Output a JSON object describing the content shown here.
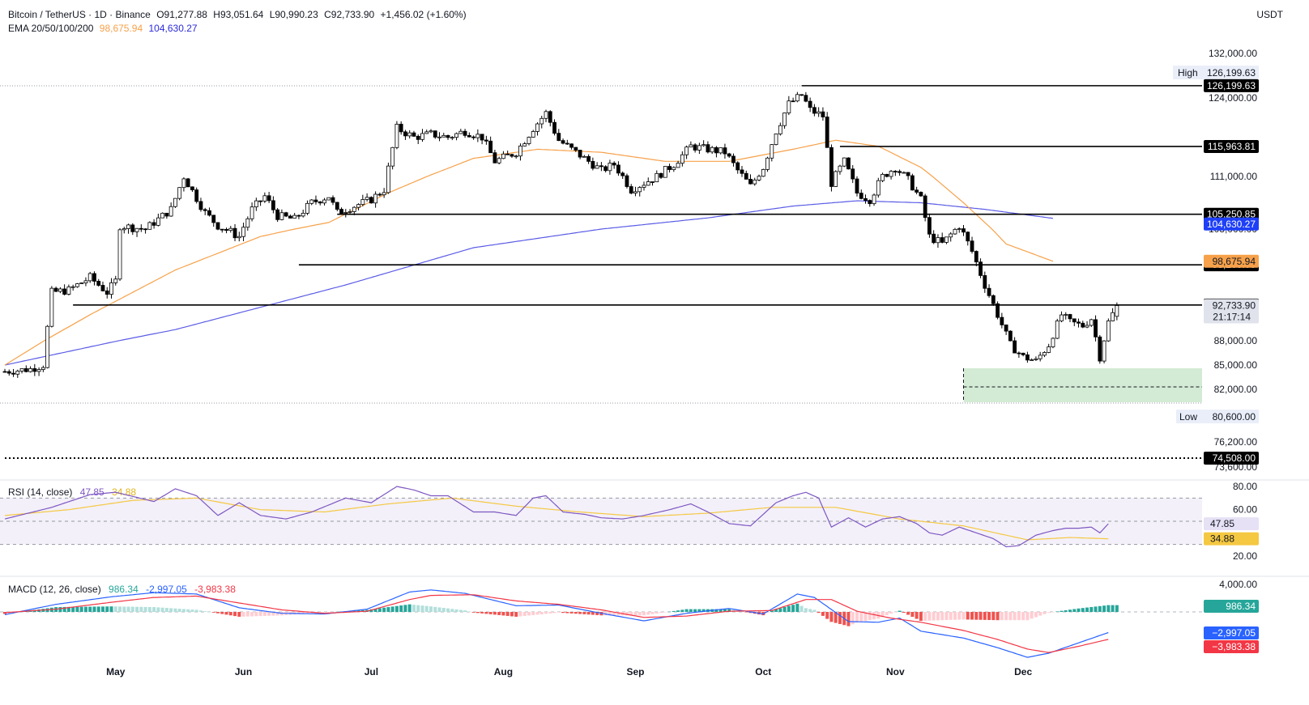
{
  "header": {
    "symbol": "Bitcoin / TetherUS · 1D · Binance",
    "open_label": "O",
    "open": "91,277.88",
    "high_label": "H",
    "high": "93,051.64",
    "low_label": "L",
    "low": "90,990.23",
    "close_label": "C",
    "close": "92,733.90",
    "change": "+1,456.02 (+1.60%)",
    "ema_label": "EMA 20/50/100/200",
    "ema50_value": "98,675.94",
    "ema200_value": "104,630.27"
  },
  "currency": "USDT",
  "colors": {
    "up": "#ffffff",
    "down": "#000000",
    "ema50": "#f7a14a",
    "ema200": "#5b5ce6",
    "rsi": "#7e57c2",
    "rsi_ma": "#f5c842",
    "macd": "#2962ff",
    "signal": "#f23645",
    "hist_pos": "#26a69a",
    "hist_neg": "#ef5350"
  },
  "chart_data": [
    {
      "type": "candlestick",
      "title": "Bitcoin / TetherUS · 1D · Binance",
      "y_axis": {
        "min": 73000,
        "max": 134000,
        "ticks": [
          "132,000.00",
          "124,000.00",
          "111,000.00",
          "103,000.00",
          "88,000.00",
          "85,000.00",
          "82,000.00",
          "76,200.00",
          "73,600.00"
        ],
        "tick_values": [
          132000,
          124000,
          111000,
          103000,
          88000,
          85000,
          82000,
          76200,
          73600
        ]
      },
      "x_axis": {
        "ticks": [
          "May",
          "Jun",
          "Jul",
          "Aug",
          "Sep",
          "Oct",
          "Nov",
          "Dec"
        ],
        "tick_days": [
          26,
          56,
          86,
          117,
          148,
          178,
          209,
          239
        ]
      },
      "x_start": "2025-04-01",
      "x_end": "2025-12-04",
      "markers": {
        "high_label": "High",
        "high": "126,199.63",
        "low_label": "Low",
        "low": "80,600.00"
      },
      "levels": [
        {
          "value": 126199.63,
          "label": "126,199.63",
          "from_day": 187
        },
        {
          "value": 115963.81,
          "label": "115,963.81",
          "from_day": 196
        },
        {
          "value": 105250.85,
          "label": "105,250.85",
          "from_day": 78
        },
        {
          "value": 98200.0,
          "label": "98,200.00",
          "from_day": 69
        },
        {
          "value": 92800.01,
          "label": "92,800.01",
          "from_day": 16
        },
        {
          "value": 74508.0,
          "label": "74,508.00",
          "from_day": 0,
          "dotted": true
        }
      ],
      "last_price": {
        "value": 92733.9,
        "label": "92,733.90",
        "countdown": "21:17:14"
      },
      "ema_labels": {
        "ema200": "104,630.27",
        "ema50": "98,675.94"
      },
      "zone": {
        "from_day": 225,
        "low": 80600,
        "high": 84600,
        "mid": 82300
      },
      "anchor_points": [
        [
          0,
          84200
        ],
        [
          6,
          84500
        ],
        [
          9,
          85000
        ],
        [
          11,
          94500
        ],
        [
          15,
          94800
        ],
        [
          20,
          96500
        ],
        [
          24,
          94500
        ],
        [
          26,
          96000
        ],
        [
          27,
          103500
        ],
        [
          33,
          103000
        ],
        [
          39,
          106000
        ],
        [
          42,
          111000
        ],
        [
          47,
          105500
        ],
        [
          50,
          103500
        ],
        [
          55,
          102000
        ],
        [
          58,
          106000
        ],
        [
          61,
          108000
        ],
        [
          64,
          105000
        ],
        [
          68,
          104500
        ],
        [
          72,
          107000
        ],
        [
          76,
          108000
        ],
        [
          78,
          105500
        ],
        [
          82,
          106500
        ],
        [
          86,
          107500
        ],
        [
          89,
          109000
        ],
        [
          92,
          119000
        ],
        [
          96,
          117500
        ],
        [
          100,
          118000
        ],
        [
          104,
          117500
        ],
        [
          108,
          118500
        ],
        [
          112,
          117500
        ],
        [
          115,
          113500
        ],
        [
          120,
          115000
        ],
        [
          124,
          119000
        ],
        [
          127,
          121500
        ],
        [
          130,
          117000
        ],
        [
          133,
          115500
        ],
        [
          136,
          114000
        ],
        [
          140,
          112000
        ],
        [
          143,
          113000
        ],
        [
          147,
          109000
        ],
        [
          150,
          110000
        ],
        [
          153,
          111000
        ],
        [
          157,
          113000
        ],
        [
          161,
          116000
        ],
        [
          165,
          115500
        ],
        [
          169,
          115000
        ],
        [
          172,
          112000
        ],
        [
          175,
          109500
        ],
        [
          178,
          112500
        ],
        [
          181,
          118500
        ],
        [
          184,
          123000
        ],
        [
          187,
          124500
        ],
        [
          189,
          122000
        ],
        [
          192,
          121000
        ],
        [
          194,
          110000
        ],
        [
          197,
          113500
        ],
        [
          200,
          108500
        ],
        [
          203,
          107500
        ],
        [
          206,
          111000
        ],
        [
          209,
          112500
        ],
        [
          212,
          110500
        ],
        [
          215,
          107500
        ],
        [
          217,
          102000
        ],
        [
          220,
          101000
        ],
        [
          224,
          103500
        ],
        [
          227,
          100000
        ],
        [
          230,
          95500
        ],
        [
          233,
          91500
        ],
        [
          236,
          87500
        ],
        [
          239,
          86000
        ],
        [
          242,
          85500
        ],
        [
          245,
          87500
        ],
        [
          248,
          91500
        ],
        [
          250,
          90500
        ],
        [
          253,
          90000
        ],
        [
          255,
          91000
        ],
        [
          257,
          86000
        ],
        [
          259,
          90500
        ],
        [
          261,
          92733.9
        ]
      ],
      "ema50": [
        [
          0,
          85000
        ],
        [
          20,
          91500
        ],
        [
          40,
          97500
        ],
        [
          60,
          102000
        ],
        [
          76,
          104000
        ],
        [
          90,
          108500
        ],
        [
          110,
          114000
        ],
        [
          125,
          115500
        ],
        [
          140,
          115000
        ],
        [
          155,
          113500
        ],
        [
          170,
          113500
        ],
        [
          185,
          115500
        ],
        [
          195,
          117000
        ],
        [
          205,
          116000
        ],
        [
          215,
          112500
        ],
        [
          225,
          107000
        ],
        [
          235,
          101000
        ],
        [
          246,
          98675.94
        ]
      ],
      "ema200": [
        [
          0,
          85000
        ],
        [
          40,
          89500
        ],
        [
          80,
          95500
        ],
        [
          110,
          100500
        ],
        [
          140,
          103000
        ],
        [
          165,
          104700
        ],
        [
          185,
          106500
        ],
        [
          200,
          107300
        ],
        [
          215,
          107000
        ],
        [
          230,
          106000
        ],
        [
          246,
          104630.27
        ]
      ]
    },
    {
      "type": "line",
      "title": "RSI (14, close)",
      "values_label": {
        "rsi": "47.85",
        "rsi_ma": "34.88"
      },
      "y_axis": {
        "ticks": [
          "80.00",
          "60.00",
          "20.00"
        ],
        "tick_values": [
          80,
          60,
          20
        ],
        "bands": [
          70,
          50,
          30
        ]
      },
      "anchor_points": [
        [
          0,
          52
        ],
        [
          11,
          62
        ],
        [
          20,
          73
        ],
        [
          26,
          75
        ],
        [
          35,
          67
        ],
        [
          40,
          78
        ],
        [
          45,
          72
        ],
        [
          50,
          55
        ],
        [
          55,
          66
        ],
        [
          60,
          55
        ],
        [
          66,
          52
        ],
        [
          72,
          58
        ],
        [
          80,
          70
        ],
        [
          86,
          66
        ],
        [
          92,
          80
        ],
        [
          96,
          77
        ],
        [
          100,
          72
        ],
        [
          104,
          72
        ],
        [
          110,
          58
        ],
        [
          115,
          58
        ],
        [
          120,
          55
        ],
        [
          124,
          70
        ],
        [
          127,
          72
        ],
        [
          131,
          58
        ],
        [
          136,
          56
        ],
        [
          140,
          53
        ],
        [
          145,
          52
        ],
        [
          150,
          55
        ],
        [
          156,
          60
        ],
        [
          161,
          65
        ],
        [
          165,
          58
        ],
        [
          170,
          48
        ],
        [
          175,
          46
        ],
        [
          181,
          66
        ],
        [
          185,
          72
        ],
        [
          188,
          75
        ],
        [
          191,
          70
        ],
        [
          194,
          45
        ],
        [
          198,
          53
        ],
        [
          202,
          45
        ],
        [
          206,
          52
        ],
        [
          210,
          54
        ],
        [
          214,
          48
        ],
        [
          217,
          40
        ],
        [
          220,
          38
        ],
        [
          224,
          45
        ],
        [
          228,
          40
        ],
        [
          232,
          35
        ],
        [
          235,
          28
        ],
        [
          238,
          29
        ],
        [
          242,
          38
        ],
        [
          246,
          42
        ],
        [
          249,
          44
        ],
        [
          252,
          44
        ],
        [
          255,
          45
        ],
        [
          257,
          40
        ],
        [
          259,
          47.85
        ]
      ],
      "ma_anchor_points": [
        [
          0,
          55
        ],
        [
          15,
          60
        ],
        [
          30,
          68
        ],
        [
          45,
          70
        ],
        [
          60,
          60
        ],
        [
          75,
          58
        ],
        [
          90,
          65
        ],
        [
          105,
          70
        ],
        [
          120,
          63
        ],
        [
          135,
          58
        ],
        [
          150,
          54
        ],
        [
          165,
          57
        ],
        [
          180,
          62
        ],
        [
          195,
          62
        ],
        [
          210,
          52
        ],
        [
          225,
          46
        ],
        [
          240,
          34
        ],
        [
          250,
          36
        ],
        [
          259,
          34.88
        ]
      ]
    },
    {
      "type": "bar",
      "title": "MACD (12, 26, close)",
      "values_label": {
        "hist": "986.34",
        "macd": "-2,997.05",
        "signal": "-3,983.38"
      },
      "value_labels": {
        "hist": "986.34",
        "macd": "−2,997.05",
        "signal": "−3,983.38"
      },
      "y_axis": {
        "ticks": [
          "4,000.00"
        ],
        "tick_values": [
          4000
        ]
      },
      "macd_anchor_points": [
        [
          0,
          -400
        ],
        [
          12,
          1100
        ],
        [
          25,
          2200
        ],
        [
          35,
          2800
        ],
        [
          45,
          2600
        ],
        [
          55,
          600
        ],
        [
          65,
          -200
        ],
        [
          75,
          -300
        ],
        [
          85,
          400
        ],
        [
          95,
          2900
        ],
        [
          100,
          3200
        ],
        [
          108,
          2700
        ],
        [
          120,
          900
        ],
        [
          130,
          1000
        ],
        [
          140,
          -200
        ],
        [
          150,
          -1300
        ],
        [
          160,
          -200
        ],
        [
          170,
          500
        ],
        [
          178,
          -300
        ],
        [
          186,
          2600
        ],
        [
          190,
          2100
        ],
        [
          198,
          -1400
        ],
        [
          205,
          -1500
        ],
        [
          210,
          -900
        ],
        [
          215,
          -2800
        ],
        [
          225,
          -3800
        ],
        [
          233,
          -5200
        ],
        [
          240,
          -6600
        ],
        [
          245,
          -6000
        ],
        [
          252,
          -4500
        ],
        [
          259,
          -2997.05
        ]
      ],
      "signal_anchor_points": [
        [
          0,
          -100
        ],
        [
          12,
          400
        ],
        [
          25,
          1400
        ],
        [
          35,
          2100
        ],
        [
          45,
          2300
        ],
        [
          55,
          1300
        ],
        [
          65,
          300
        ],
        [
          75,
          -200
        ],
        [
          85,
          100
        ],
        [
          95,
          1800
        ],
        [
          100,
          2400
        ],
        [
          110,
          2500
        ],
        [
          120,
          1600
        ],
        [
          130,
          1100
        ],
        [
          140,
          300
        ],
        [
          150,
          -800
        ],
        [
          160,
          -600
        ],
        [
          170,
          100
        ],
        [
          180,
          200
        ],
        [
          188,
          1800
        ],
        [
          194,
          1800
        ],
        [
          200,
          100
        ],
        [
          208,
          -900
        ],
        [
          215,
          -1500
        ],
        [
          225,
          -2700
        ],
        [
          233,
          -4000
        ],
        [
          240,
          -5400
        ],
        [
          245,
          -5900
        ],
        [
          252,
          -5000
        ],
        [
          259,
          -3983.38
        ]
      ]
    }
  ]
}
